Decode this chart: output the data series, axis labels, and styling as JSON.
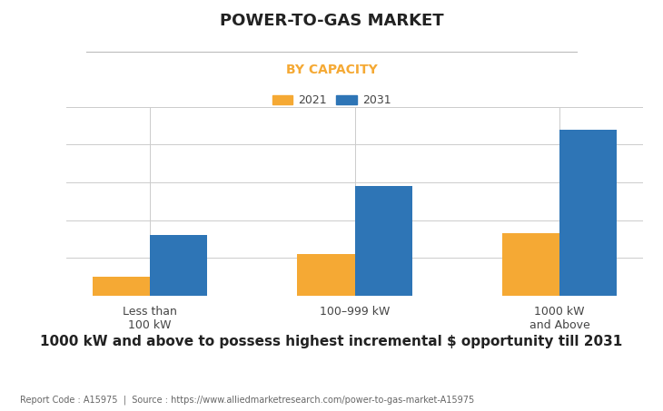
{
  "title": "POWER-TO-GAS MARKET",
  "subtitle": "BY CAPACITY",
  "categories": [
    "Less than\n100 kW",
    "100–999 kW",
    "1000 kW\nand Above"
  ],
  "values_2021": [
    10,
    22,
    33
  ],
  "values_2031": [
    32,
    58,
    88
  ],
  "color_2021": "#F5A934",
  "color_2031": "#2E75B6",
  "subtitle_color": "#F5A934",
  "title_color": "#222222",
  "footnote": "1000 kW and above to possess highest incremental $ opportunity till 2031",
  "source_text": "Report Code : A15975  |  Source : https://www.alliedmarketresearch.com/power-to-gas-market-A15975",
  "background_color": "#FFFFFF",
  "grid_color": "#CCCCCC",
  "legend_labels": [
    "2021",
    "2031"
  ],
  "bar_width": 0.28,
  "ylim": [
    0,
    100
  ],
  "title_fontsize": 13,
  "subtitle_fontsize": 10,
  "tick_fontsize": 9,
  "footnote_fontsize": 11,
  "source_fontsize": 7
}
